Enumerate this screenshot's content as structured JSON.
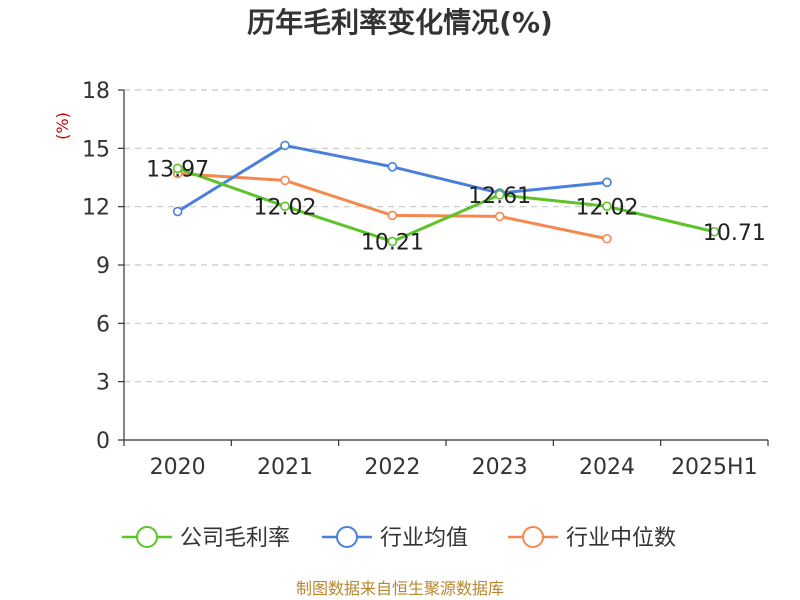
{
  "chart_data": {
    "type": "line",
    "title": "历年毛利率变化情况(%)",
    "ylabel": "(%)",
    "xlabel": "",
    "categories": [
      "2020",
      "2021",
      "2022",
      "2023",
      "2024",
      "2025H1"
    ],
    "ylim": [
      0,
      18
    ],
    "yticks": [
      0,
      3,
      6,
      9,
      12,
      15,
      18
    ],
    "grid": true,
    "legend_position": "bottom",
    "series": [
      {
        "name": "公司毛利率",
        "color": "#5cc328",
        "values": [
          13.97,
          12.02,
          10.21,
          12.61,
          12.02,
          10.71
        ],
        "labels": [
          "13.97",
          "12.02",
          "10.21",
          "12.61",
          "12.02",
          "10.71"
        ]
      },
      {
        "name": "行业均值",
        "color": "#4a7fdc",
        "values": [
          11.75,
          15.15,
          14.05,
          12.7,
          13.25,
          null
        ]
      },
      {
        "name": "行业中位数",
        "color": "#f4894f",
        "values": [
          13.7,
          13.35,
          11.55,
          11.5,
          10.35,
          null
        ]
      }
    ]
  },
  "source": "制图数据来自恒生聚源数据库"
}
